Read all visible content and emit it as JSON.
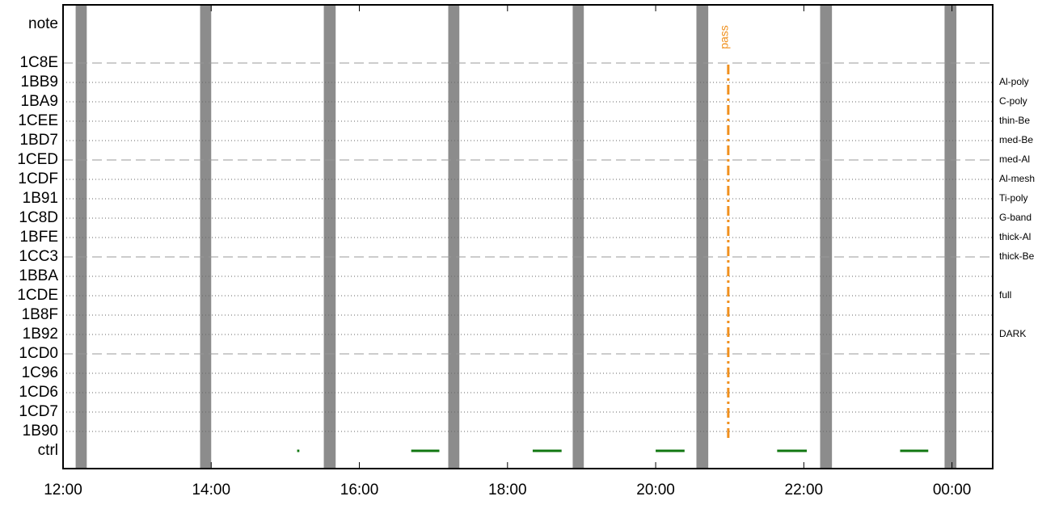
{
  "chart_data": {
    "type": "timeline",
    "rows": [
      "note",
      "1C8E",
      "1BB9",
      "1BA9",
      "1CEE",
      "1BD7",
      "1CED",
      "1CDF",
      "1B91",
      "1C8D",
      "1BFE",
      "1CC3",
      "1BBA",
      "1CDE",
      "1B8F",
      "1B92",
      "1CD0",
      "1C96",
      "1CD6",
      "1CD7",
      "1B90",
      "ctrl"
    ],
    "row_notes": [
      null,
      null,
      "Al-poly",
      "C-poly",
      "thin-Be",
      "med-Be",
      "med-Al",
      "Al-mesh",
      "Ti-poly",
      "G-band",
      "thick-Al",
      "thick-Be",
      null,
      "full",
      null,
      "DARK",
      null,
      null,
      null,
      null,
      null,
      null
    ],
    "xlim": [
      12,
      24.55
    ],
    "xticks": [
      {
        "value": 12,
        "label": "12:00"
      },
      {
        "value": 14,
        "label": "14:00"
      },
      {
        "value": 16,
        "label": "16:00"
      },
      {
        "value": 18,
        "label": "18:00"
      },
      {
        "value": 20,
        "label": "20:00"
      },
      {
        "value": 22,
        "label": "22:00"
      },
      {
        "value": 24,
        "label": "00:00"
      }
    ],
    "outages": {
      "color": "#8c8c8c",
      "start": [
        12.17,
        13.85,
        15.52,
        17.2,
        18.88,
        20.55,
        22.22,
        23.9
      ],
      "end": [
        12.32,
        14.0,
        15.68,
        17.35,
        19.03,
        20.71,
        22.38,
        24.06
      ]
    },
    "ctrl_segments": {
      "color": "#117711",
      "start": [
        15.16,
        16.7,
        18.34,
        20.0,
        21.64,
        23.3
      ],
      "end": [
        15.19,
        17.08,
        18.73,
        20.39,
        22.04,
        23.68
      ]
    },
    "pass": {
      "x": 20.98,
      "label": "pass",
      "color": "#f0901e"
    }
  }
}
